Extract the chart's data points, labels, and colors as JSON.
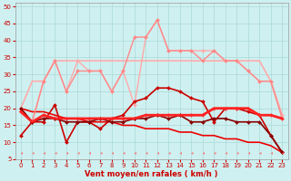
{
  "xlabel": "Vent moyen/en rafales ( km/h )",
  "xlim": [
    -0.5,
    23.5
  ],
  "ylim": [
    5,
    51
  ],
  "yticks": [
    5,
    10,
    15,
    20,
    25,
    30,
    35,
    40,
    45,
    50
  ],
  "xticks": [
    0,
    1,
    2,
    3,
    4,
    5,
    6,
    7,
    8,
    9,
    10,
    11,
    12,
    13,
    14,
    15,
    16,
    17,
    18,
    19,
    20,
    21,
    22,
    23
  ],
  "bg_color": "#cff0f0",
  "grid_color": "#aad8d8",
  "series": [
    {
      "y": [
        20,
        28,
        28,
        34,
        34,
        34,
        34,
        34,
        34,
        34,
        34,
        34,
        34,
        34,
        34,
        34,
        34,
        34,
        34,
        34,
        34,
        34,
        28,
        18
      ],
      "color": "#ffaaaa",
      "lw": 1.2,
      "marker": null,
      "zorder": 2
    },
    {
      "y": [
        20,
        16,
        28,
        34,
        25,
        34,
        31,
        31,
        25,
        31,
        21,
        41,
        46,
        37,
        37,
        37,
        37,
        37,
        34,
        34,
        31,
        28,
        28,
        18
      ],
      "color": "#ffaaaa",
      "lw": 1.0,
      "marker": "D",
      "ms": 2.0,
      "zorder": 3
    },
    {
      "y": [
        20,
        16,
        28,
        34,
        25,
        31,
        31,
        31,
        25,
        31,
        41,
        41,
        46,
        37,
        37,
        37,
        34,
        37,
        34,
        34,
        31,
        28,
        28,
        17
      ],
      "color": "#ff8888",
      "lw": 1.0,
      "marker": "D",
      "ms": 2.0,
      "zorder": 4
    },
    {
      "y": [
        20,
        19,
        19,
        18,
        17,
        17,
        16,
        16,
        16,
        15,
        15,
        14,
        14,
        14,
        13,
        13,
        12,
        12,
        11,
        11,
        10,
        10,
        9,
        7
      ],
      "color": "#ee0000",
      "lw": 1.2,
      "marker": null,
      "zorder": 3
    },
    {
      "y": [
        12,
        16,
        16,
        21,
        10,
        16,
        16,
        14,
        17,
        18,
        22,
        23,
        26,
        26,
        25,
        23,
        22,
        16,
        20,
        20,
        19,
        18,
        12,
        7
      ],
      "color": "#cc0000",
      "lw": 1.2,
      "marker": "D",
      "ms": 2.0,
      "zorder": 5
    },
    {
      "y": [
        19,
        16,
        18,
        17,
        17,
        17,
        17,
        17,
        17,
        17,
        17,
        18,
        18,
        18,
        18,
        18,
        18,
        20,
        20,
        20,
        20,
        18,
        18,
        17
      ],
      "color": "#ff2222",
      "lw": 2.0,
      "marker": null,
      "zorder": 6
    },
    {
      "y": [
        19,
        16,
        18,
        17,
        17,
        17,
        17,
        17,
        17,
        17,
        17,
        18,
        18,
        18,
        18,
        18,
        18,
        20,
        20,
        20,
        20,
        18,
        18,
        17
      ],
      "color": "#ff5555",
      "lw": 1.2,
      "marker": "D",
      "ms": 2.0,
      "zorder": 5
    },
    {
      "y": [
        20,
        16,
        17,
        17,
        16,
        16,
        16,
        17,
        16,
        16,
        17,
        17,
        18,
        17,
        18,
        16,
        16,
        17,
        17,
        16,
        16,
        16,
        12,
        7
      ],
      "color": "#880000",
      "lw": 1.2,
      "marker": "D",
      "ms": 2.0,
      "zorder": 5
    }
  ],
  "arrow_color": "#ff6666",
  "label_fontsize": 6,
  "tick_fontsize": 5
}
